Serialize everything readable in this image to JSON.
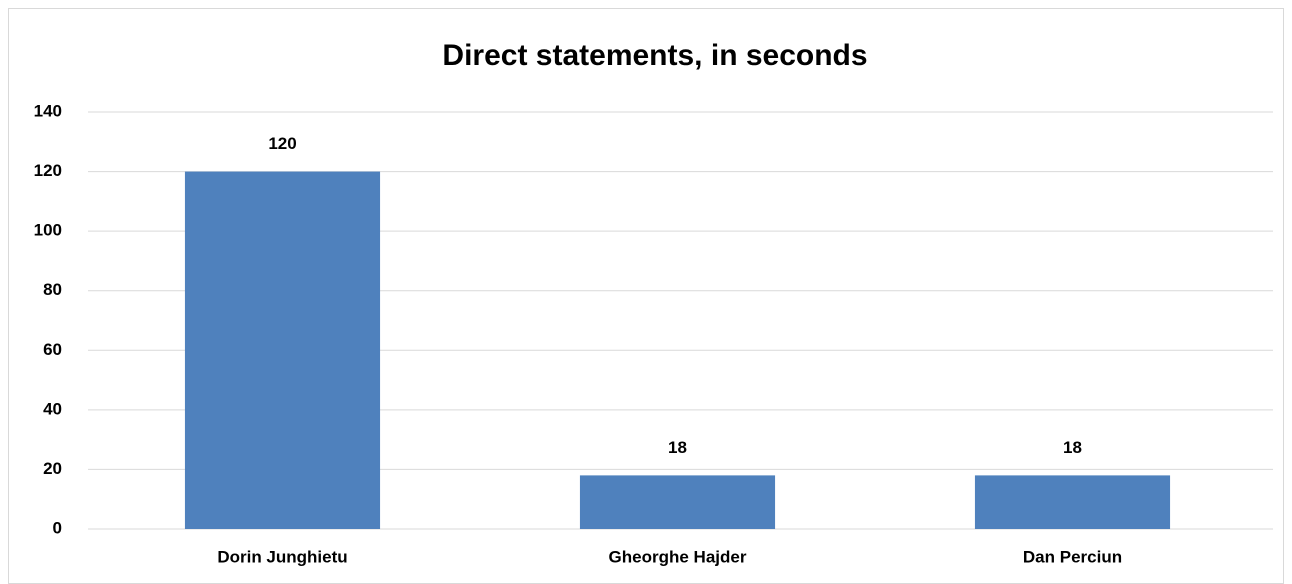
{
  "chart_data": {
    "type": "bar",
    "title": "Direct statements, in seconds",
    "categories": [
      "Dorin Junghietu",
      "Gheorghe Hajder",
      "Dan Perciun"
    ],
    "values": [
      120,
      18,
      18
    ],
    "color": "#4f81bd",
    "ylim": [
      0,
      140
    ],
    "yticks": [
      0,
      20,
      40,
      60,
      80,
      100,
      120,
      140
    ],
    "grid": true
  }
}
